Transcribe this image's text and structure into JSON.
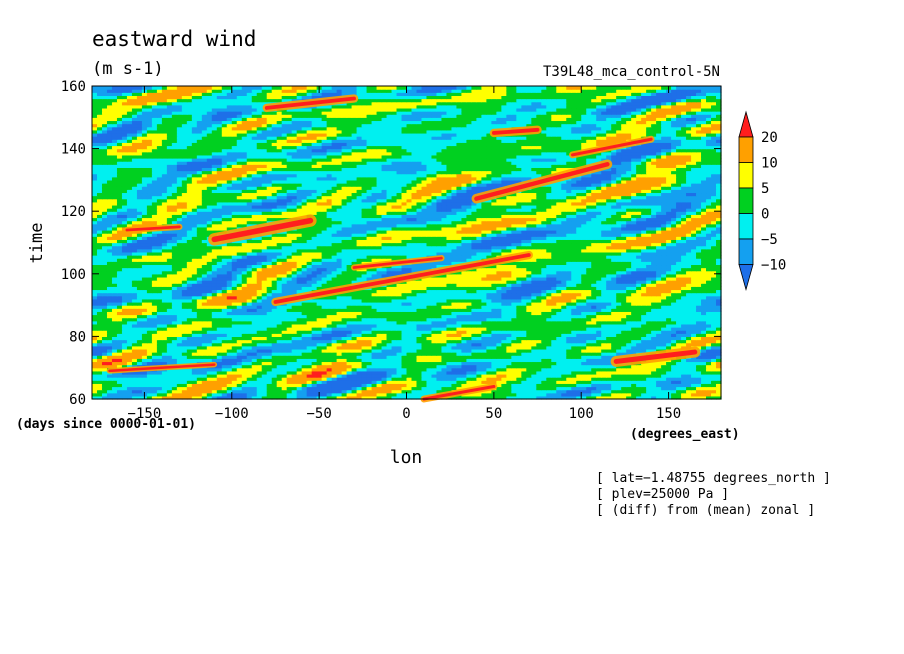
{
  "chart_data": {
    "type": "heatmap",
    "title": "eastward wind",
    "units": "(m s-1)",
    "dataset": "T39L48_mca_control-5N",
    "xlabel": "lon",
    "ylabel": "time",
    "x_units": "(degrees_east)",
    "y_units": "(days since 0000-01-01)",
    "xlim": [
      -180,
      180
    ],
    "ylim": [
      60,
      160
    ],
    "x_ticks": [
      -150,
      -100,
      -50,
      0,
      50,
      100,
      150
    ],
    "y_ticks": [
      60,
      80,
      100,
      120,
      140,
      160
    ],
    "x_tick_labels": [
      "−150",
      "−100",
      "−50",
      "0",
      "50",
      "100",
      "150"
    ],
    "y_tick_labels": [
      "60",
      "80",
      "100",
      "120",
      "140",
      "160"
    ],
    "color_levels": [
      -10,
      -5,
      0,
      5,
      10,
      20
    ],
    "colorbar_labels": [
      "20",
      "10",
      "5",
      "0",
      "−5",
      "−10"
    ],
    "colors": [
      "#1e6fe8",
      "#14a0f0",
      "#00f0f0",
      "#00d020",
      "#ffff00",
      "#ffa000",
      "#ff1e1e"
    ],
    "annotations": [
      "[ lat=−1.48755 degrees_north ]",
      "[ plev=25000 Pa ]",
      "[ (diff) from (mean) zonal ]"
    ],
    "streaks": [
      {
        "x0": -110,
        "t0": 111,
        "x1": -55,
        "t1": 117,
        "w": 1.8
      },
      {
        "x0": -75,
        "t0": 91,
        "x1": 70,
        "t1": 106,
        "w": 1.2
      },
      {
        "x0": 40,
        "t0": 124,
        "x1": 115,
        "t1": 135,
        "w": 1.4
      },
      {
        "x0": -80,
        "t0": 153,
        "x1": -30,
        "t1": 156,
        "w": 1.2
      },
      {
        "x0": 95,
        "t0": 138,
        "x1": 140,
        "t1": 143,
        "w": 1.0
      },
      {
        "x0": 120,
        "t0": 72,
        "x1": 165,
        "t1": 75,
        "w": 1.6
      },
      {
        "x0": 50,
        "t0": 145,
        "x1": 75,
        "t1": 146,
        "w": 1.2
      },
      {
        "x0": -170,
        "t0": 69,
        "x1": -110,
        "t1": 71,
        "w": 0.8
      },
      {
        "x0": -160,
        "t0": 114,
        "x1": -130,
        "t1": 115,
        "w": 0.9
      },
      {
        "x0": 10,
        "t0": 60,
        "x1": 50,
        "t1": 64,
        "w": 1.0
      },
      {
        "x0": -30,
        "t0": 102,
        "x1": 20,
        "t1": 105,
        "w": 0.9
      }
    ]
  }
}
